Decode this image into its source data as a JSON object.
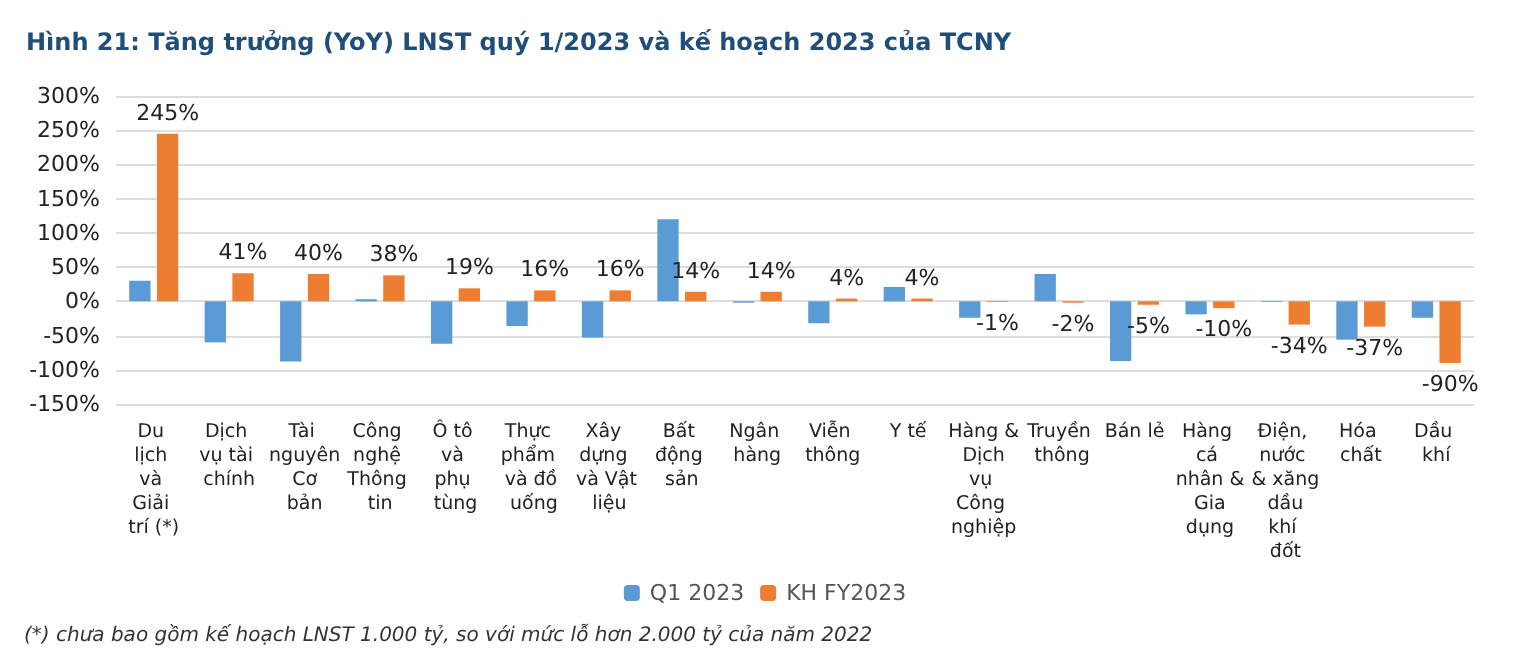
{
  "chart_data": {
    "type": "bar",
    "title": "Hình 21: Tăng trưởng (YoY) LNST quý 1/2023 và kế hoạch 2023 của TCNY",
    "categories": [
      "Du lịch và Giải trí (*)",
      "Dịch vụ tài chính",
      "Tài nguyên Cơ bản",
      "Công nghệ Thông tin",
      "Ô tô và phụ tùng",
      "Thực phẩm và đồ uống",
      "Xây dựng và Vật liệu",
      "Bất động sản",
      "Ngân hàng",
      "Viễn thông",
      "Y tế",
      "Hàng & Dịch vụ Công nghiệp",
      "Truyền thông",
      "Bán lẻ",
      "Hàng cá nhân & Gia dụng",
      "Điện, nước & xăng dầu khí đốt",
      "Hóa chất",
      "Dầu khí"
    ],
    "series": [
      {
        "name": "Q1 2023",
        "color": "#5b9bd5",
        "values": [
          30,
          -60,
          -88,
          3,
          -62,
          -36,
          -53,
          120,
          -2,
          -32,
          21,
          -24,
          40,
          -87,
          -19,
          -1,
          -56,
          -24
        ]
      },
      {
        "name": "KH FY2023",
        "color": "#ed7d31",
        "values": [
          245,
          41,
          40,
          38,
          19,
          16,
          16,
          14,
          14,
          4,
          4,
          -1,
          -2,
          -5,
          -10,
          -34,
          -37,
          -90
        ],
        "value_labels": [
          "245%",
          "41%",
          "40%",
          "38%",
          "19%",
          "16%",
          "16%",
          "14%",
          "14%",
          "4%",
          "4%",
          "-1%",
          "-2%",
          "-5%",
          "-10%",
          "-34%",
          "-37%",
          "-90%"
        ]
      }
    ],
    "ylim": [
      -150,
      300
    ],
    "yticks": [
      {
        "value": -150,
        "label": "-150%"
      },
      {
        "value": -100,
        "label": "-100%"
      },
      {
        "value": -50,
        "label": "-50%"
      },
      {
        "value": 0,
        "label": "0%"
      },
      {
        "value": 50,
        "label": "50%"
      },
      {
        "value": 100,
        "label": "100%"
      },
      {
        "value": 150,
        "label": "150%"
      },
      {
        "value": 200,
        "label": "200%"
      },
      {
        "value": 250,
        "label": "250%"
      },
      {
        "value": 300,
        "label": "300%"
      }
    ],
    "grid": "y",
    "legend": "bottom",
    "annotations": [
      "(*) chưa bao gồm kế hoạch LNST 1.000 tỷ, so với mức lỗ hơn 2.000 tỷ của năm 2022"
    ]
  }
}
